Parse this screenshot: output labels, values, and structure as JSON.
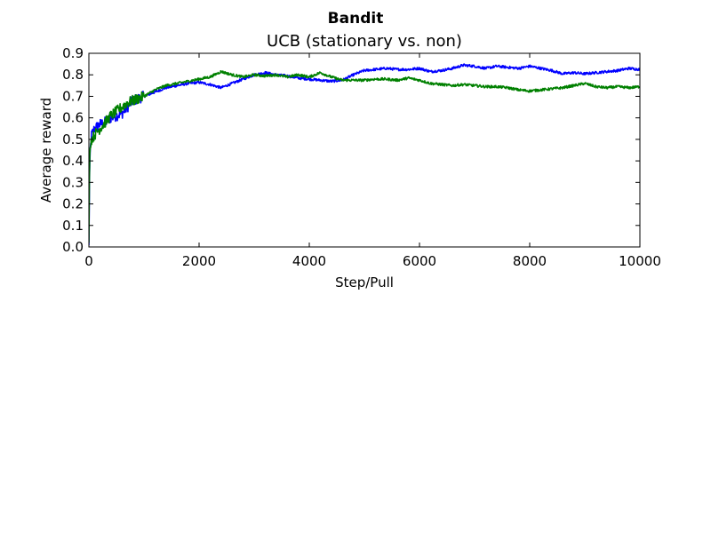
{
  "figure": {
    "suptitle": "Bandit"
  },
  "chart_data": {
    "type": "line",
    "title": "UCB (stationary vs. non)",
    "xlabel": "Step/Pull",
    "ylabel": "Average reward",
    "xlim": [
      0,
      10000
    ],
    "ylim": [
      0.0,
      0.9
    ],
    "xticks": [
      0,
      2000,
      4000,
      6000,
      8000,
      10000
    ],
    "xtick_labels": [
      "0",
      "2000",
      "4000",
      "6000",
      "8000",
      "10000"
    ],
    "yticks": [
      0.0,
      0.1,
      0.2,
      0.3,
      0.4,
      0.5,
      0.6,
      0.7,
      0.8,
      0.9
    ],
    "ytick_labels": [
      "0.0",
      "0.1",
      "0.2",
      "0.3",
      "0.4",
      "0.5",
      "0.6",
      "0.7",
      "0.8",
      "0.9"
    ],
    "grid": false,
    "legend": "none",
    "series": [
      {
        "color": "#0000ff",
        "x": [
          0,
          10,
          25,
          50,
          100,
          200,
          300,
          400,
          500,
          600,
          700,
          800,
          900,
          1000,
          1200,
          1400,
          1600,
          1800,
          2000,
          2200,
          2400,
          2600,
          2800,
          3000,
          3200,
          3400,
          3600,
          3800,
          4000,
          4200,
          4400,
          4600,
          4800,
          5000,
          5200,
          5400,
          5600,
          5800,
          6000,
          6200,
          6400,
          6600,
          6800,
          7000,
          7200,
          7400,
          7600,
          7800,
          8000,
          8200,
          8400,
          8600,
          8800,
          9000,
          9200,
          9400,
          9600,
          9800,
          10000
        ],
        "y": [
          0.0,
          0.3,
          0.45,
          0.52,
          0.55,
          0.57,
          0.58,
          0.6,
          0.61,
          0.62,
          0.65,
          0.68,
          0.69,
          0.7,
          0.72,
          0.74,
          0.75,
          0.76,
          0.765,
          0.755,
          0.74,
          0.76,
          0.78,
          0.8,
          0.81,
          0.8,
          0.795,
          0.785,
          0.78,
          0.775,
          0.77,
          0.775,
          0.8,
          0.82,
          0.825,
          0.83,
          0.825,
          0.825,
          0.83,
          0.815,
          0.82,
          0.83,
          0.845,
          0.84,
          0.83,
          0.84,
          0.835,
          0.83,
          0.84,
          0.83,
          0.82,
          0.805,
          0.81,
          0.805,
          0.81,
          0.815,
          0.82,
          0.83,
          0.825
        ]
      },
      {
        "color": "#008000",
        "x": [
          0,
          10,
          25,
          50,
          100,
          200,
          300,
          400,
          500,
          600,
          700,
          800,
          900,
          1000,
          1200,
          1400,
          1600,
          1800,
          2000,
          2200,
          2400,
          2600,
          2800,
          3000,
          3200,
          3400,
          3600,
          3800,
          4000,
          4200,
          4400,
          4600,
          4800,
          5000,
          5200,
          5400,
          5600,
          5800,
          6000,
          6200,
          6400,
          6600,
          6800,
          7000,
          7200,
          7400,
          7600,
          7800,
          8000,
          8200,
          8400,
          8600,
          8800,
          9000,
          9200,
          9400,
          9600,
          9800,
          10000
        ],
        "y": [
          0.0,
          0.35,
          0.48,
          0.5,
          0.52,
          0.55,
          0.58,
          0.61,
          0.63,
          0.65,
          0.67,
          0.68,
          0.69,
          0.7,
          0.73,
          0.75,
          0.76,
          0.77,
          0.78,
          0.79,
          0.815,
          0.8,
          0.79,
          0.8,
          0.795,
          0.8,
          0.79,
          0.8,
          0.79,
          0.81,
          0.79,
          0.775,
          0.775,
          0.775,
          0.78,
          0.78,
          0.775,
          0.785,
          0.775,
          0.76,
          0.755,
          0.75,
          0.755,
          0.75,
          0.745,
          0.745,
          0.74,
          0.73,
          0.725,
          0.73,
          0.735,
          0.74,
          0.75,
          0.76,
          0.745,
          0.74,
          0.745,
          0.74,
          0.745
        ]
      }
    ]
  }
}
